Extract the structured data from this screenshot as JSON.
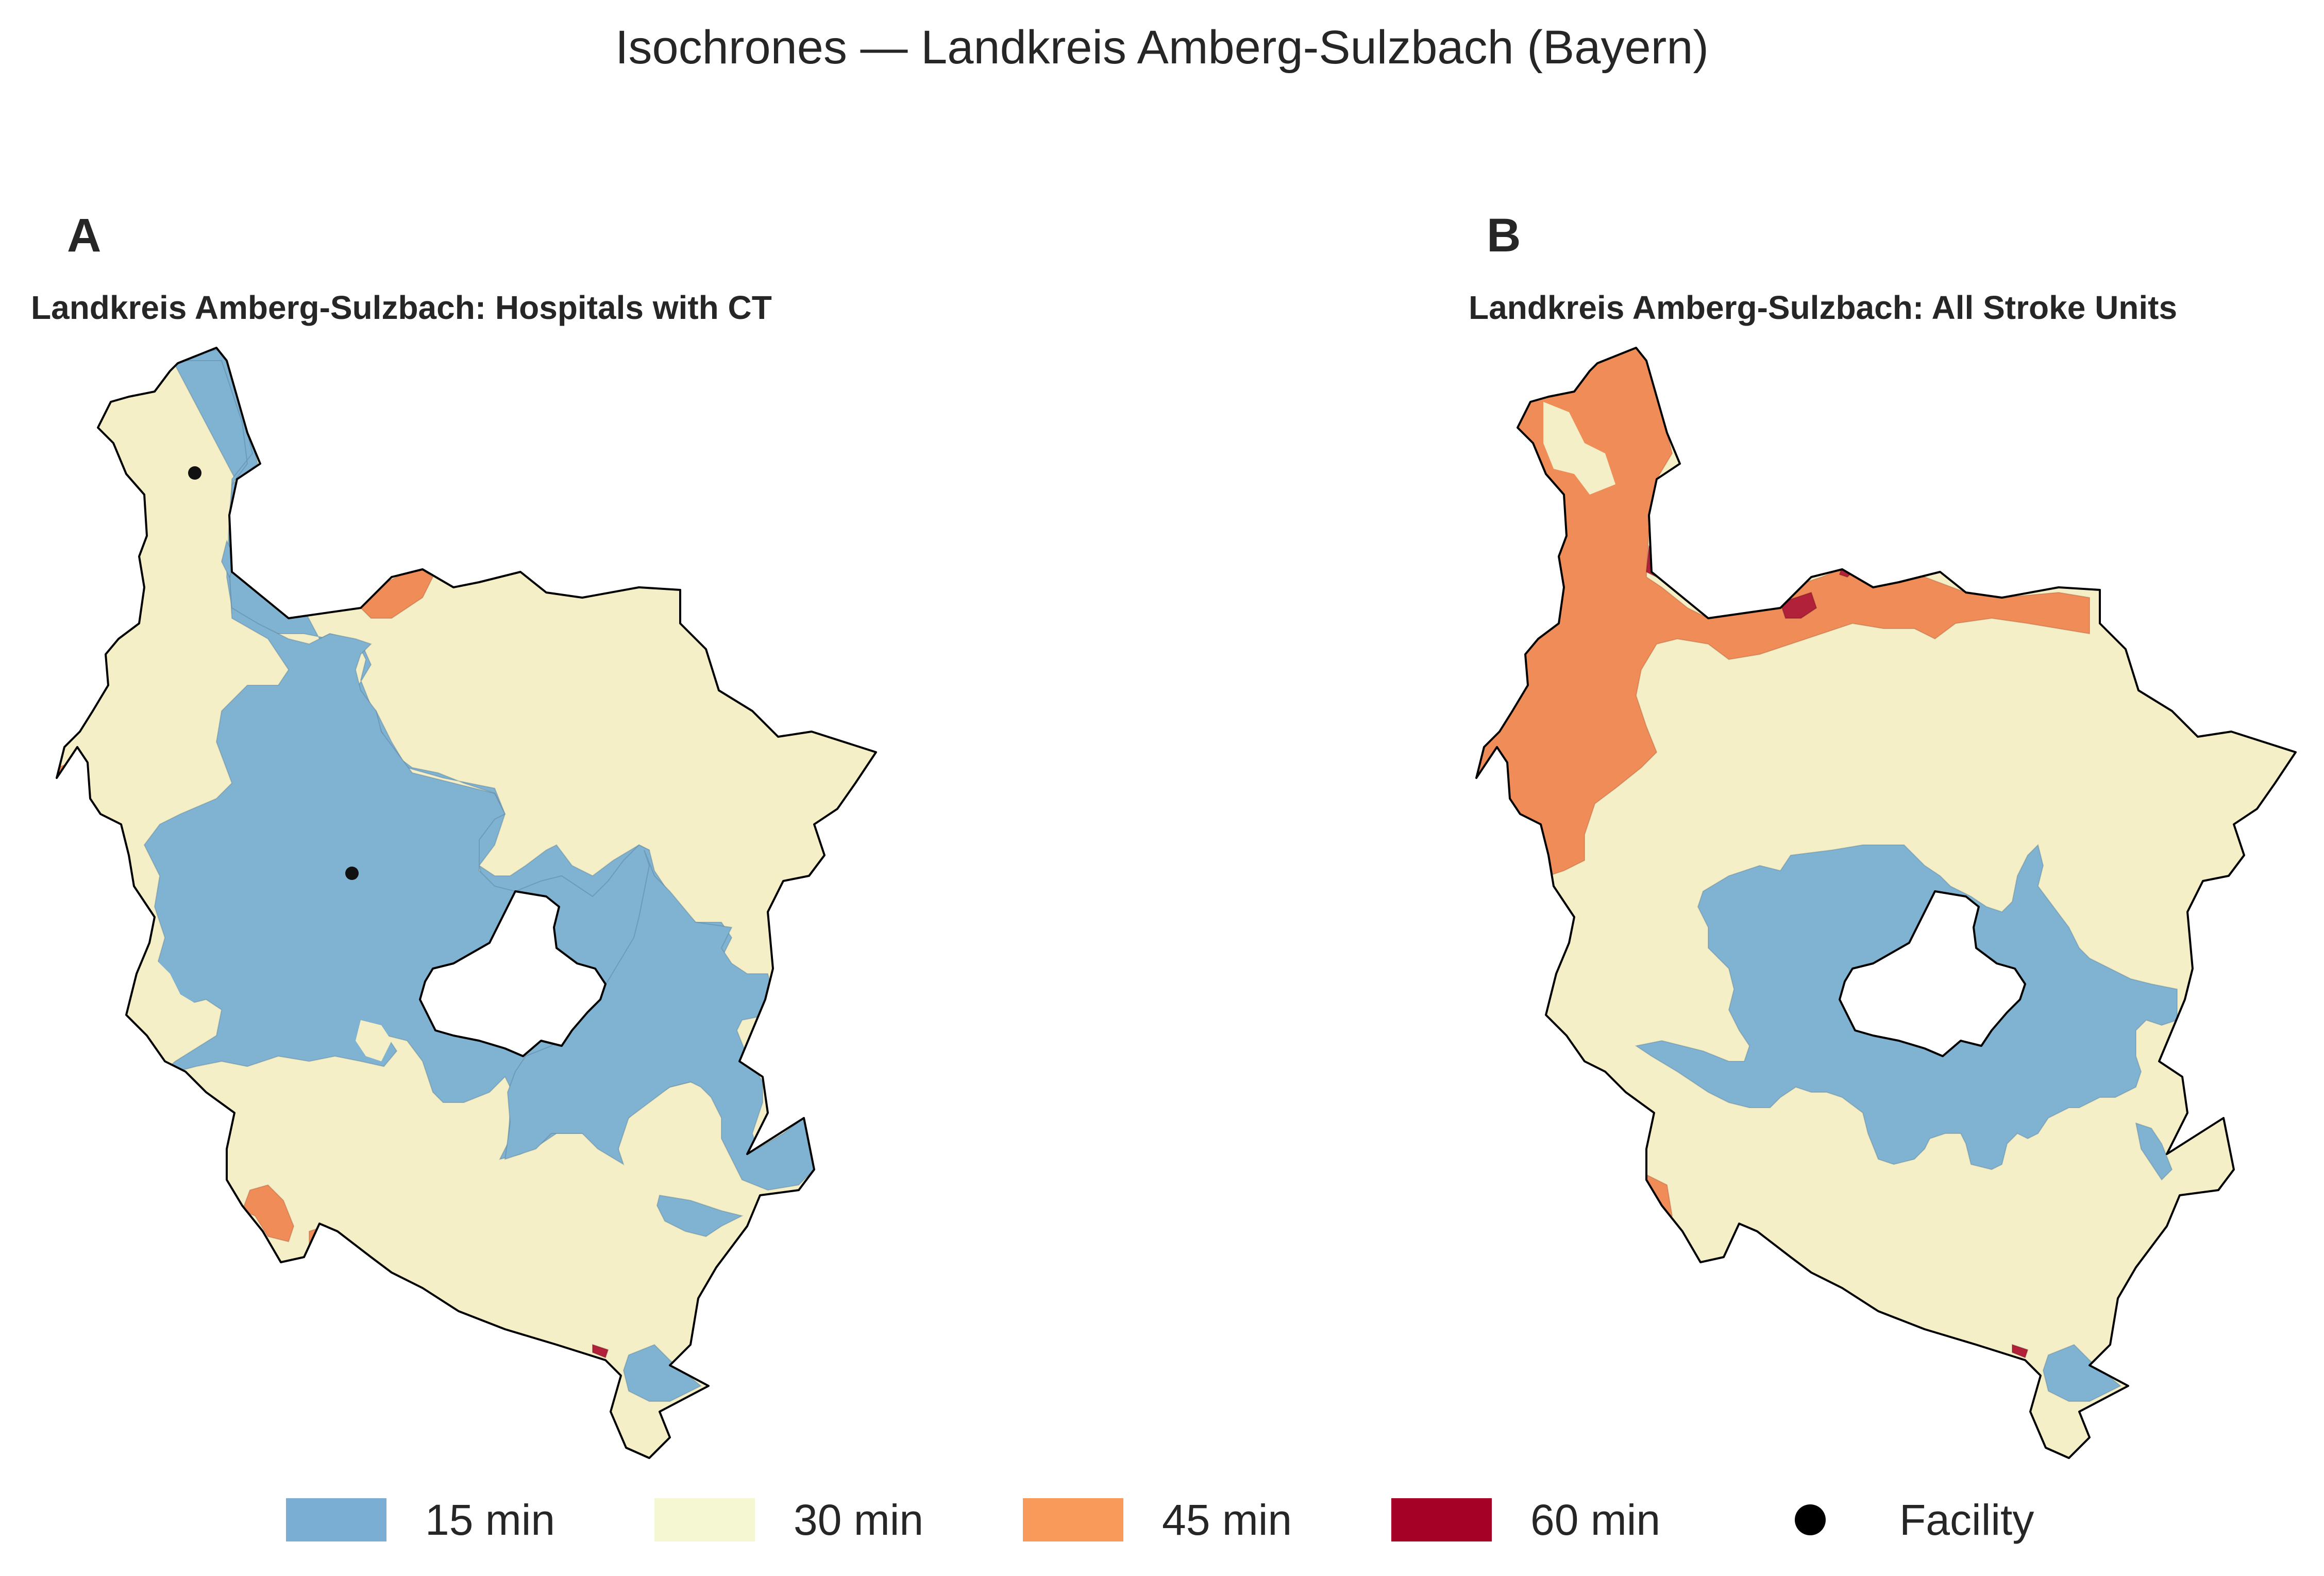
{
  "title": "Isochrones — Landkreis Amberg-Sulzbach (Bayern)",
  "panels": [
    {
      "letter": "A",
      "title": "Landkreis Amberg-Sulzbach: Hospitals with CT"
    },
    {
      "letter": "B",
      "title": "Landkreis Amberg-Sulzbach: All Stroke Units"
    }
  ],
  "legend": [
    {
      "label": "15 min",
      "color": "#7aaed3"
    },
    {
      "label": "30 min",
      "color": "#f5f7d3"
    },
    {
      "label": "45 min",
      "color": "#f99a5a"
    },
    {
      "label": "60 min",
      "color": "#a50026"
    },
    {
      "label": "Facility",
      "color": "#000000"
    }
  ],
  "colors": {
    "c15": "#80b2d2",
    "c30": "#f5efc7",
    "c45": "#f08c58",
    "c60": "#b2213a",
    "outline": "#000000"
  }
}
